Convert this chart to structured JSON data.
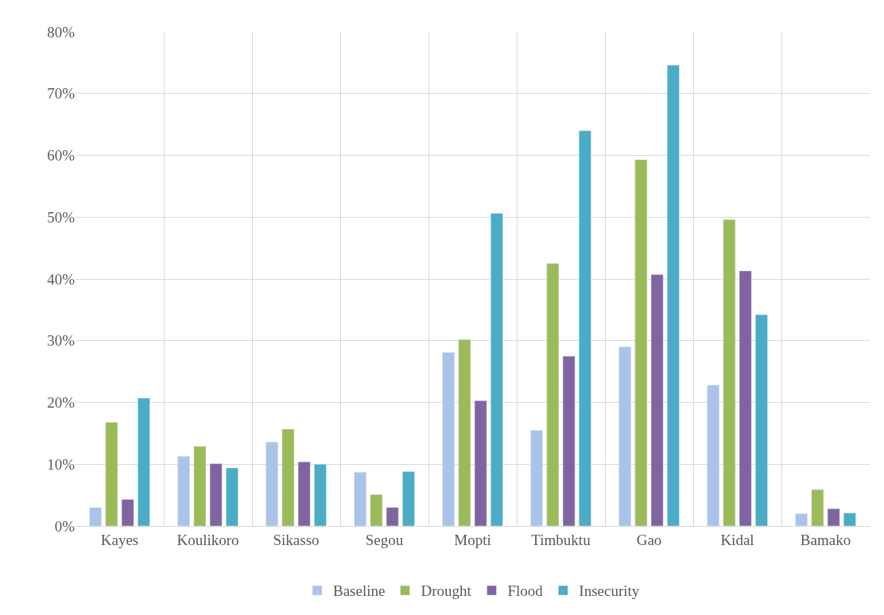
{
  "chart_data": {
    "type": "bar",
    "categories": [
      "Kayes",
      "Koulikoro",
      "Sikasso",
      "Segou",
      "Mopti",
      "Timbuktu",
      "Gao",
      "Kidal",
      "Bamako"
    ],
    "series": [
      {
        "name": "Baseline",
        "color": "#a9c4e8",
        "values": [
          3.0,
          11.3,
          13.6,
          8.7,
          28.1,
          15.5,
          29.0,
          22.8,
          2.0
        ]
      },
      {
        "name": "Drought",
        "color": "#9bbb59",
        "values": [
          16.8,
          12.9,
          15.7,
          5.1,
          30.2,
          42.5,
          59.3,
          49.6,
          5.9
        ]
      },
      {
        "name": "Flood",
        "color": "#8064a2",
        "values": [
          4.3,
          10.1,
          10.4,
          3.0,
          20.3,
          27.5,
          40.7,
          41.3,
          2.8
        ]
      },
      {
        "name": "Insecurity",
        "color": "#4bacc6",
        "values": [
          20.7,
          9.4,
          10.0,
          8.8,
          50.6,
          64.0,
          74.6,
          34.2,
          2.1
        ]
      }
    ],
    "ylim": [
      0,
      80
    ],
    "yticks": [
      {
        "value": 0,
        "label": "0%"
      },
      {
        "value": 10,
        "label": "10%"
      },
      {
        "value": 20,
        "label": "20%"
      },
      {
        "value": 30,
        "label": "30%"
      },
      {
        "value": 40,
        "label": "40%"
      },
      {
        "value": 50,
        "label": "50%"
      },
      {
        "value": 60,
        "label": "60%"
      },
      {
        "value": 70,
        "label": "70%"
      },
      {
        "value": 80,
        "label": "80%"
      }
    ],
    "grid": true,
    "legend": "bottom"
  }
}
